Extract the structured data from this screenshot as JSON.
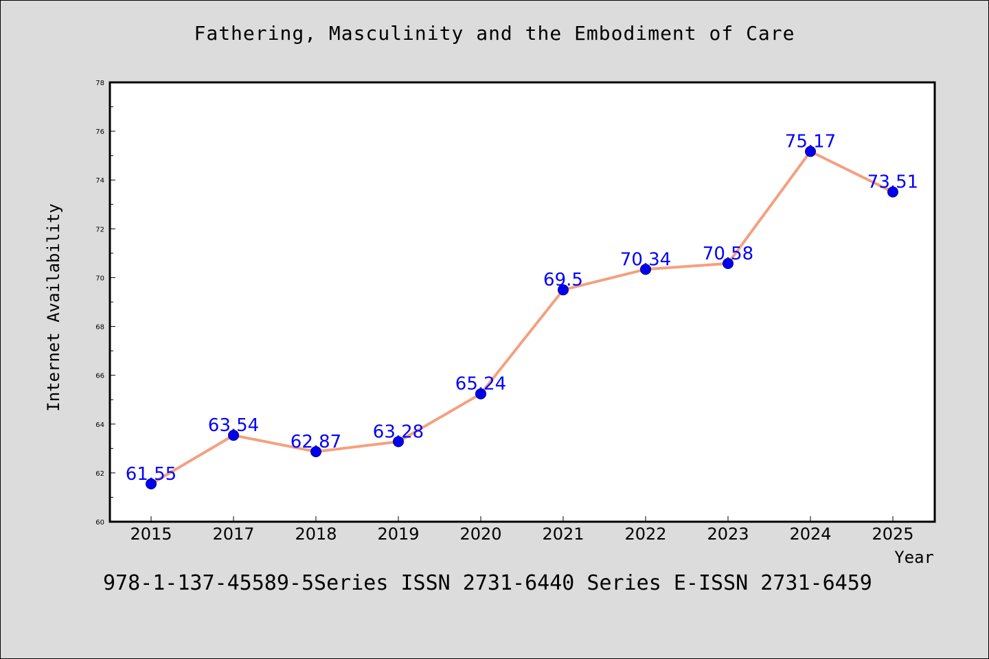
{
  "chart_data": {
    "type": "line",
    "title": "Fathering, Masculinity and the Embodiment of Care",
    "xlabel": "Year",
    "ylabel": "Internet Availability",
    "categories": [
      "2015",
      "2017",
      "2018",
      "2019",
      "2020",
      "2021",
      "2022",
      "2023",
      "2024",
      "2025"
    ],
    "series": [
      {
        "values": [
          61.55,
          63.54,
          62.87,
          63.28,
          65.24,
          69.5,
          70.34,
          70.58,
          75.17,
          73.51
        ],
        "labels": [
          "61.55",
          "63.54",
          "62.87",
          "63.28",
          "65.24",
          "69.5",
          "70.34",
          "70.58",
          "75.17",
          "73.51"
        ]
      }
    ],
    "ylim": [
      60,
      78
    ],
    "yticks": [
      60,
      62,
      64,
      66,
      68,
      70,
      72,
      74,
      76,
      78
    ],
    "grid": false,
    "legend": "none",
    "colors": {
      "line": "#f4a07f",
      "marker": "#0000ee",
      "marker_edge": "#000080",
      "label": "#0000ff",
      "background": "#dcdcdc",
      "plot_bg": "#ffffff"
    }
  },
  "footer": {
    "isbn": "978-1-137-45589-5Series ISSN 2731-6440 Series E-ISSN 2731-6459"
  }
}
